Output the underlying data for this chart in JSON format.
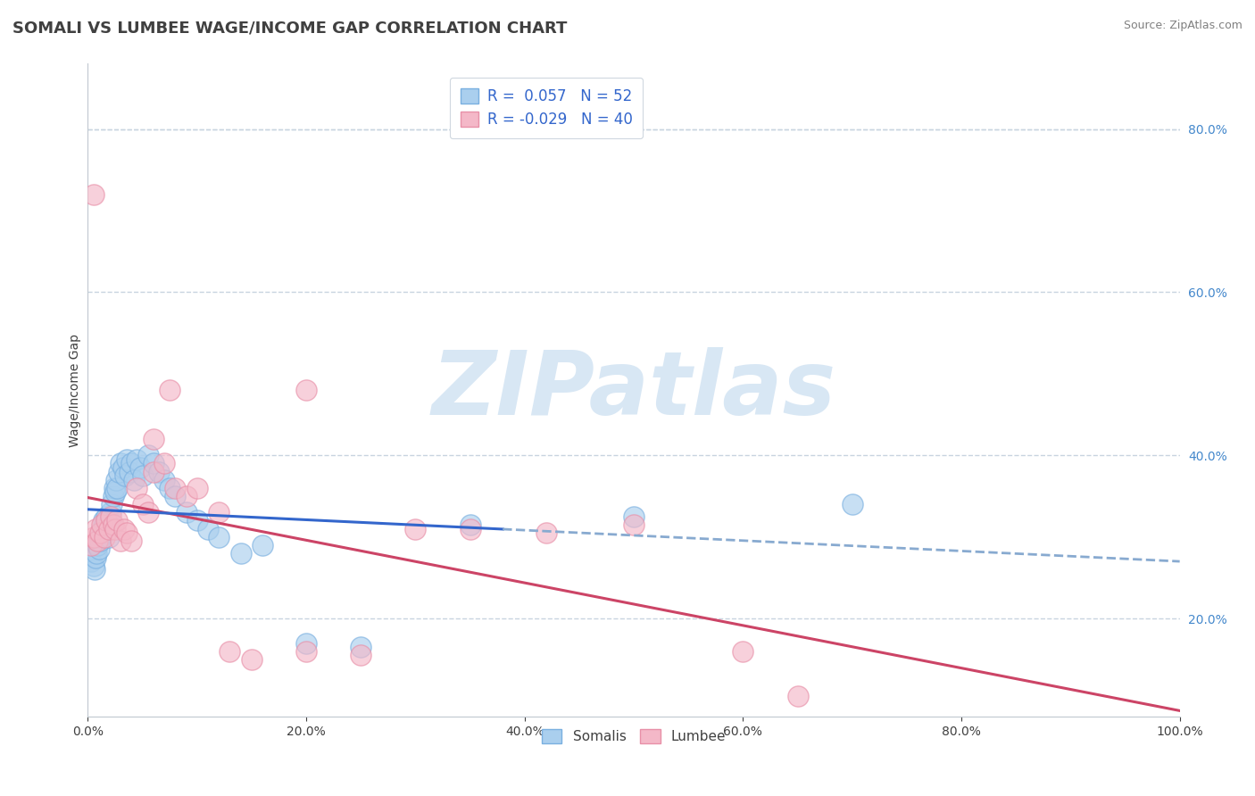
{
  "title": "SOMALI VS LUMBEE WAGE/INCOME GAP CORRELATION CHART",
  "source": "Source: ZipAtlas.com",
  "ylabel": "Wage/Income Gap",
  "xlim": [
    0.0,
    1.0
  ],
  "ylim": [
    0.08,
    0.88
  ],
  "x_ticks": [
    0.0,
    0.2,
    0.4,
    0.6,
    0.8,
    1.0
  ],
  "x_tick_labels": [
    "0.0%",
    "20.0%",
    "40.0%",
    "60.0%",
    "80.0%",
    "100.0%"
  ],
  "y_ticks": [
    0.2,
    0.4,
    0.6,
    0.8
  ],
  "y_tick_labels": [
    "20.0%",
    "40.0%",
    "60.0%",
    "80.0%"
  ],
  "somali_color": "#aacfee",
  "lumbee_color": "#f4b8c8",
  "somali_edge": "#7ab0e0",
  "lumbee_edge": "#e890a8",
  "somali_R": 0.057,
  "somali_N": 52,
  "lumbee_R": -0.029,
  "lumbee_N": 40,
  "blue_line_color": "#3366cc",
  "pink_line_color": "#cc4466",
  "dashed_line_color": "#88aad0",
  "watermark_color": "#c8ddf0",
  "background_color": "#ffffff",
  "grid_color": "#c8d4e0",
  "title_color": "#404040",
  "source_color": "#808080",
  "ytick_color": "#4488cc",
  "xtick_color": "#404040",
  "legend_text_color": "#3366cc",
  "somali_x": [
    0.003,
    0.005,
    0.006,
    0.007,
    0.008,
    0.009,
    0.01,
    0.011,
    0.012,
    0.013,
    0.014,
    0.015,
    0.016,
    0.017,
    0.018,
    0.019,
    0.02,
    0.021,
    0.022,
    0.023,
    0.024,
    0.025,
    0.026,
    0.027,
    0.028,
    0.03,
    0.032,
    0.034,
    0.036,
    0.038,
    0.04,
    0.042,
    0.045,
    0.048,
    0.05,
    0.055,
    0.06,
    0.065,
    0.07,
    0.075,
    0.08,
    0.09,
    0.1,
    0.11,
    0.12,
    0.14,
    0.16,
    0.2,
    0.25,
    0.35,
    0.5,
    0.7
  ],
  "somali_y": [
    0.27,
    0.265,
    0.26,
    0.275,
    0.28,
    0.29,
    0.285,
    0.295,
    0.3,
    0.31,
    0.32,
    0.315,
    0.305,
    0.325,
    0.31,
    0.3,
    0.32,
    0.33,
    0.34,
    0.35,
    0.36,
    0.355,
    0.37,
    0.36,
    0.38,
    0.39,
    0.385,
    0.375,
    0.395,
    0.38,
    0.39,
    0.37,
    0.395,
    0.385,
    0.375,
    0.4,
    0.39,
    0.38,
    0.37,
    0.36,
    0.35,
    0.33,
    0.32,
    0.31,
    0.3,
    0.28,
    0.29,
    0.17,
    0.165,
    0.315,
    0.325,
    0.34
  ],
  "lumbee_x": [
    0.003,
    0.005,
    0.007,
    0.009,
    0.011,
    0.013,
    0.015,
    0.017,
    0.019,
    0.021,
    0.023,
    0.025,
    0.027,
    0.03,
    0.033,
    0.036,
    0.04,
    0.045,
    0.05,
    0.055,
    0.06,
    0.07,
    0.08,
    0.09,
    0.1,
    0.12,
    0.15,
    0.2,
    0.25,
    0.35,
    0.06,
    0.075,
    0.13,
    0.2,
    0.3,
    0.42,
    0.5,
    0.6,
    0.65,
    0.005
  ],
  "lumbee_y": [
    0.29,
    0.3,
    0.31,
    0.295,
    0.305,
    0.315,
    0.3,
    0.32,
    0.31,
    0.325,
    0.315,
    0.31,
    0.32,
    0.295,
    0.31,
    0.305,
    0.295,
    0.36,
    0.34,
    0.33,
    0.38,
    0.39,
    0.36,
    0.35,
    0.36,
    0.33,
    0.15,
    0.16,
    0.155,
    0.31,
    0.42,
    0.48,
    0.16,
    0.48,
    0.31,
    0.305,
    0.315,
    0.16,
    0.105,
    0.72
  ],
  "title_fontsize": 13,
  "axis_label_fontsize": 10,
  "tick_fontsize": 10,
  "legend_fontsize": 12
}
